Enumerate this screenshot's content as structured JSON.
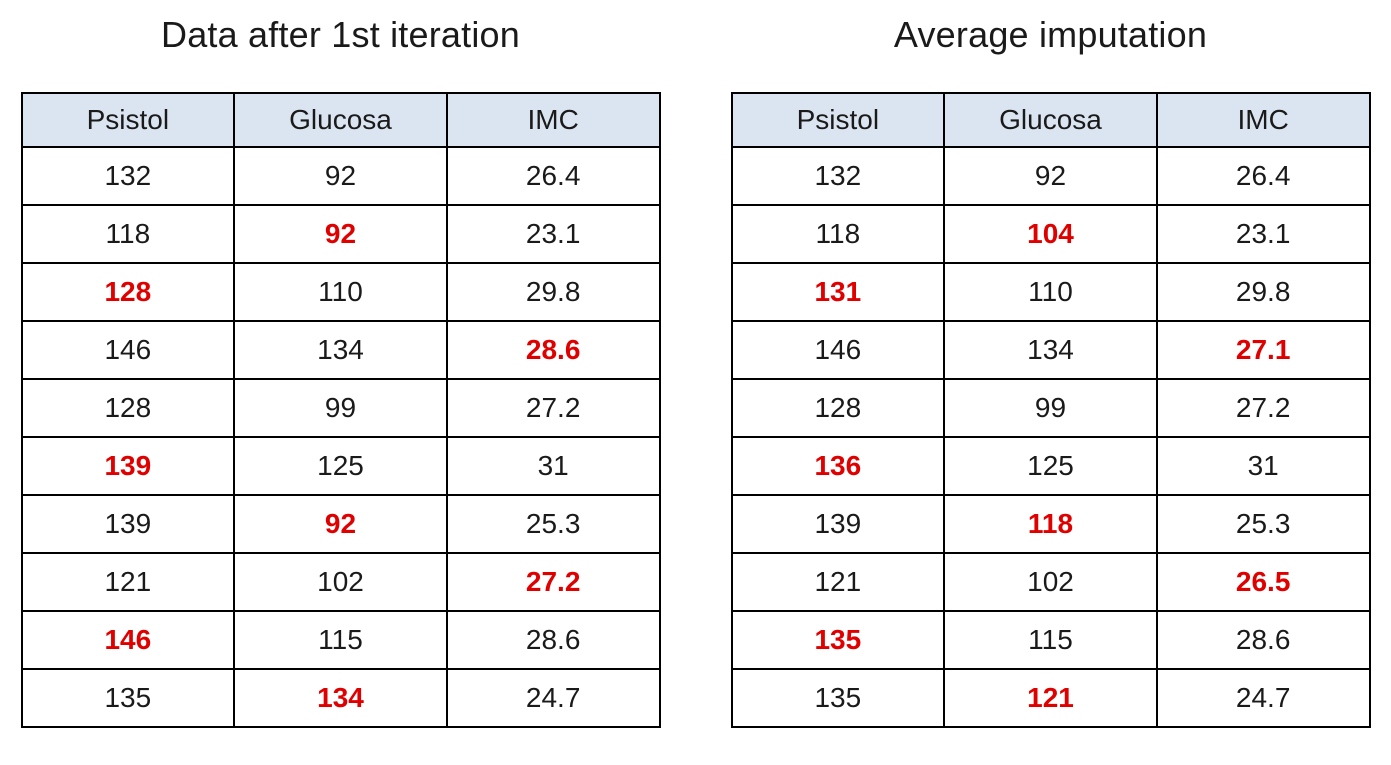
{
  "colors": {
    "header_bg": "#dbe5f1",
    "highlight": "#e00000",
    "border_color": "#000000"
  },
  "chart_data": [
    {
      "type": "table",
      "title": "Data after 1st iteration",
      "headers": [
        "Psistol",
        "Glucosa",
        "IMC"
      ],
      "highlight_meaning": "imputed values shown in bold red",
      "rows": [
        [
          {
            "value": "132",
            "highlight": false
          },
          {
            "value": "92",
            "highlight": false
          },
          {
            "value": "26.4",
            "highlight": false
          }
        ],
        [
          {
            "value": "118",
            "highlight": false
          },
          {
            "value": "92",
            "highlight": true
          },
          {
            "value": "23.1",
            "highlight": false
          }
        ],
        [
          {
            "value": "128",
            "highlight": true
          },
          {
            "value": "110",
            "highlight": false
          },
          {
            "value": "29.8",
            "highlight": false
          }
        ],
        [
          {
            "value": "146",
            "highlight": false
          },
          {
            "value": "134",
            "highlight": false
          },
          {
            "value": "28.6",
            "highlight": true
          }
        ],
        [
          {
            "value": "128",
            "highlight": false
          },
          {
            "value": "99",
            "highlight": false
          },
          {
            "value": "27.2",
            "highlight": false
          }
        ],
        [
          {
            "value": "139",
            "highlight": true
          },
          {
            "value": "125",
            "highlight": false
          },
          {
            "value": "31",
            "highlight": false
          }
        ],
        [
          {
            "value": "139",
            "highlight": false
          },
          {
            "value": "92",
            "highlight": true
          },
          {
            "value": "25.3",
            "highlight": false
          }
        ],
        [
          {
            "value": "121",
            "highlight": false
          },
          {
            "value": "102",
            "highlight": false
          },
          {
            "value": "27.2",
            "highlight": true
          }
        ],
        [
          {
            "value": "146",
            "highlight": true
          },
          {
            "value": "115",
            "highlight": false
          },
          {
            "value": "28.6",
            "highlight": false
          }
        ],
        [
          {
            "value": "135",
            "highlight": false
          },
          {
            "value": "134",
            "highlight": true
          },
          {
            "value": "24.7",
            "highlight": false
          }
        ]
      ]
    },
    {
      "type": "table",
      "title": "Average imputation",
      "headers": [
        "Psistol",
        "Glucosa",
        "IMC"
      ],
      "highlight_meaning": "imputed values shown in bold red",
      "rows": [
        [
          {
            "value": "132",
            "highlight": false
          },
          {
            "value": "92",
            "highlight": false
          },
          {
            "value": "26.4",
            "highlight": false
          }
        ],
        [
          {
            "value": "118",
            "highlight": false
          },
          {
            "value": "104",
            "highlight": true
          },
          {
            "value": "23.1",
            "highlight": false
          }
        ],
        [
          {
            "value": "131",
            "highlight": true
          },
          {
            "value": "110",
            "highlight": false
          },
          {
            "value": "29.8",
            "highlight": false
          }
        ],
        [
          {
            "value": "146",
            "highlight": false
          },
          {
            "value": "134",
            "highlight": false
          },
          {
            "value": "27.1",
            "highlight": true
          }
        ],
        [
          {
            "value": "128",
            "highlight": false
          },
          {
            "value": "99",
            "highlight": false
          },
          {
            "value": "27.2",
            "highlight": false
          }
        ],
        [
          {
            "value": "136",
            "highlight": true
          },
          {
            "value": "125",
            "highlight": false
          },
          {
            "value": "31",
            "highlight": false
          }
        ],
        [
          {
            "value": "139",
            "highlight": false
          },
          {
            "value": "118",
            "highlight": true
          },
          {
            "value": "25.3",
            "highlight": false
          }
        ],
        [
          {
            "value": "121",
            "highlight": false
          },
          {
            "value": "102",
            "highlight": false
          },
          {
            "value": "26.5",
            "highlight": true
          }
        ],
        [
          {
            "value": "135",
            "highlight": true
          },
          {
            "value": "115",
            "highlight": false
          },
          {
            "value": "28.6",
            "highlight": false
          }
        ],
        [
          {
            "value": "135",
            "highlight": false
          },
          {
            "value": "121",
            "highlight": true
          },
          {
            "value": "24.7",
            "highlight": false
          }
        ]
      ]
    }
  ]
}
